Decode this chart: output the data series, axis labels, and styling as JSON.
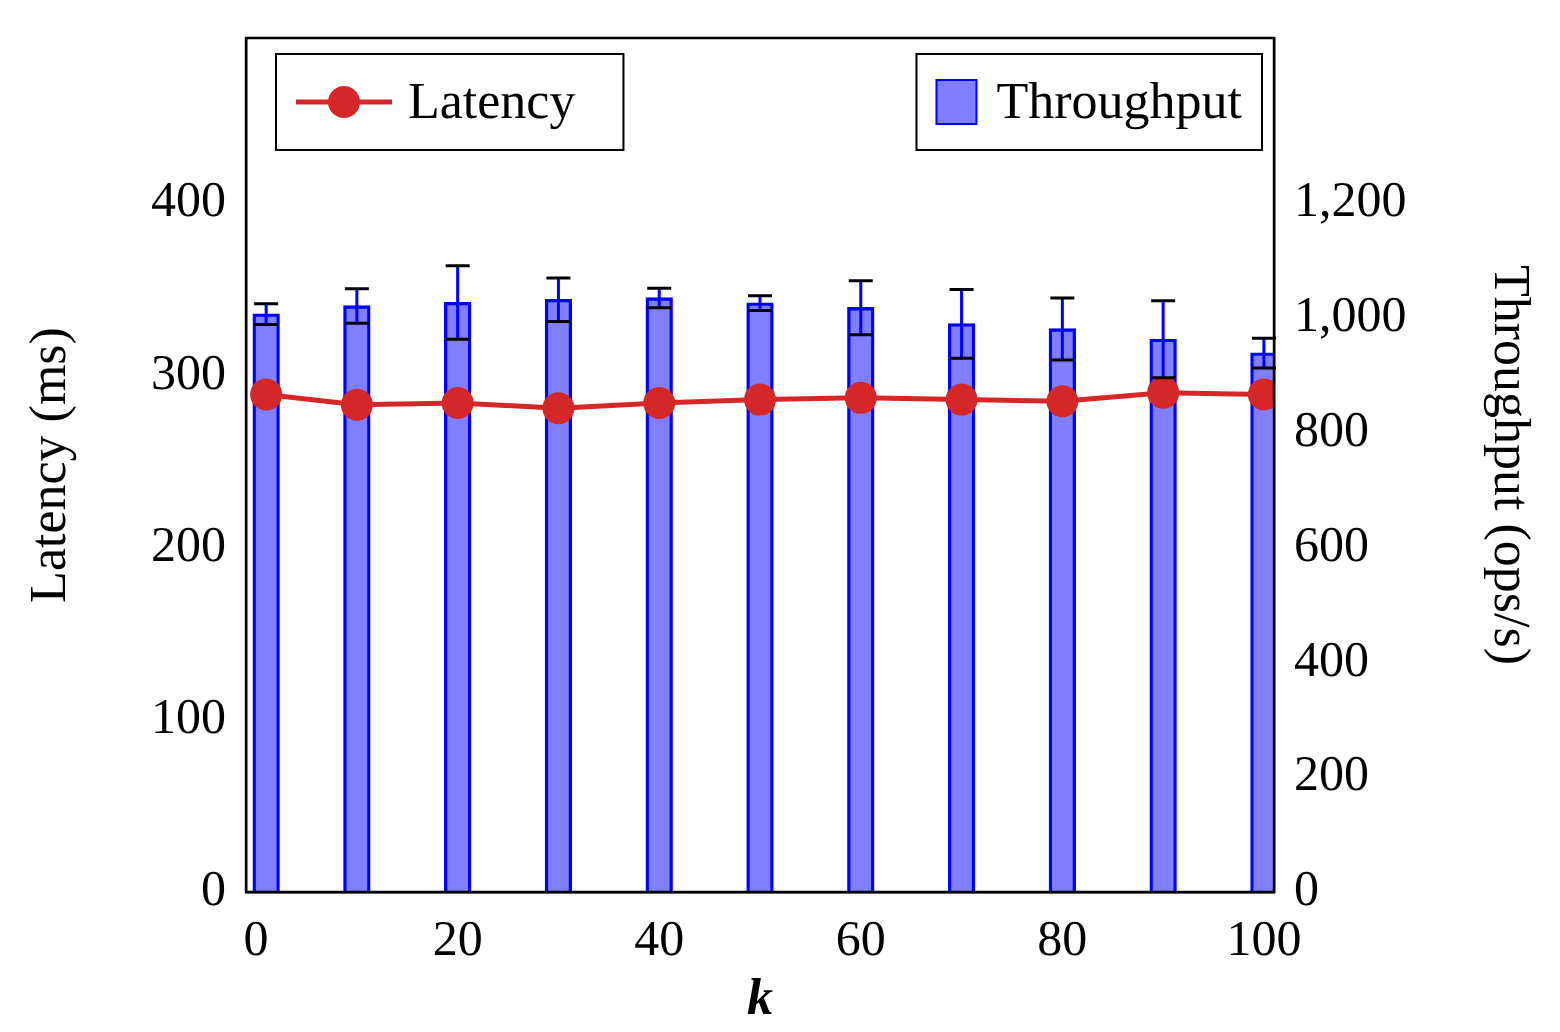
{
  "chart_data": {
    "type": "bar",
    "xlabel": "k",
    "ylabel": "Latency (ms)",
    "y2label": "Throughput (ops/s)",
    "x": [
      1,
      10,
      20,
      30,
      40,
      50,
      60,
      70,
      80,
      90,
      100
    ],
    "xlim": [
      -1,
      101
    ],
    "xticks": [
      0,
      20,
      40,
      60,
      80,
      100
    ],
    "ylim": [
      0,
      496
    ],
    "yticks": [
      0,
      100,
      200,
      300,
      400
    ],
    "y2lim": [
      0,
      1488
    ],
    "y2ticks": [
      0,
      200,
      400,
      600,
      800,
      {
        "value": 1000,
        "label": "1,000"
      },
      {
        "value": 1200,
        "label": "1,200"
      }
    ],
    "legend": "top",
    "grid": false,
    "series": [
      {
        "name": "Throughput",
        "axis": "y2",
        "color": "#0000ff",
        "values": [
          1007,
          1021,
          1027,
          1032,
          1035,
          1026,
          1018,
          990,
          981,
          963,
          939
        ],
        "errors": [
          18,
          30,
          64,
          38,
          17,
          13,
          47,
          60,
          54,
          67,
          26
        ]
      },
      {
        "name": "Latency",
        "type": "line",
        "axis": "y",
        "color": "#d62728",
        "marker": "circle",
        "values": [
          289,
          283,
          284,
          281,
          284,
          286,
          287,
          286,
          285,
          290,
          289
        ]
      }
    ]
  }
}
